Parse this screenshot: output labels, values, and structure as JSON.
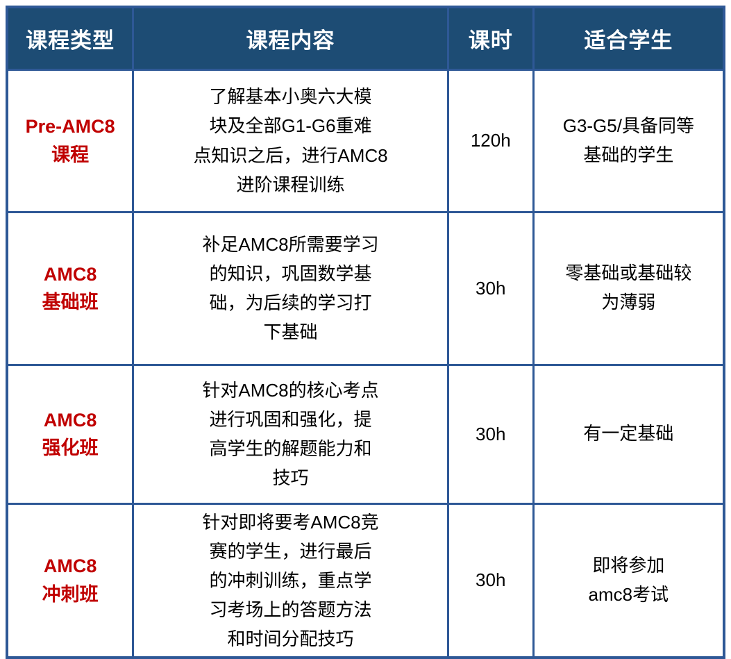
{
  "colors": {
    "header_bg": "#1d4c74",
    "header_text": "#ffffff",
    "border": "#2e5896",
    "course_type_text": "#c00000",
    "body_text": "#000000"
  },
  "table": {
    "headers": {
      "course_type": "课程类型",
      "course_content": "课程内容",
      "hours": "课时",
      "suitable_students": "适合学生"
    },
    "rows": [
      {
        "type": "Pre-AMC8\n课程",
        "content": "了解基本小奥六大模\n块及全部G1-G6重难\n点知识之后，进行AMC8\n进阶课程训练",
        "hours": "120h",
        "students": "G3-G5/具备同等\n基础的学生"
      },
      {
        "type": "AMC8\n基础班",
        "content": "补足AMC8所需要学习\n的知识，巩固数学基\n础，为后续的学习打\n下基础",
        "hours": "30h",
        "students": "零基础或基础较\n为薄弱"
      },
      {
        "type": "AMC8\n强化班",
        "content": "针对AMC8的核心考点\n进行巩固和强化，提\n高学生的解题能力和\n技巧",
        "hours": "30h",
        "students": "有一定基础"
      },
      {
        "type": "AMC8\n冲刺班",
        "content": "针对即将要考AMC8竞\n赛的学生，进行最后\n的冲刺训练，重点学\n习考场上的答题方法\n和时间分配技巧",
        "hours": "30h",
        "students": "即将参加\namc8考试"
      }
    ]
  }
}
